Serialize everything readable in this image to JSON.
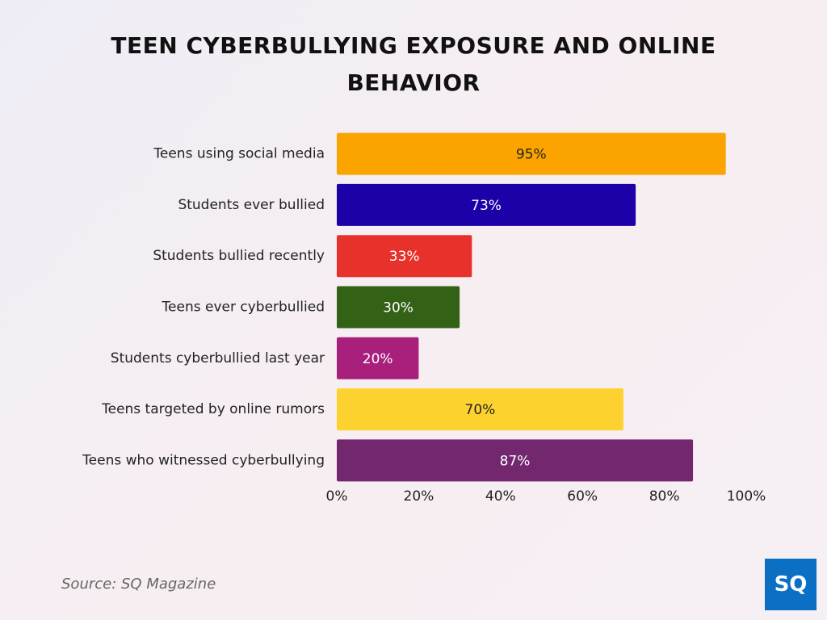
{
  "chart_data": {
    "type": "bar",
    "orientation": "horizontal",
    "title": "TEEN CYBERBULLYING EXPOSURE AND ONLINE BEHAVIOR",
    "categories": [
      "Teens using social media",
      "Students ever bullied",
      "Students bullied recently",
      "Teens ever cyberbullied",
      "Students cyberbullied last year",
      "Teens targeted by online rumors",
      "Teens who witnessed cyberbullying"
    ],
    "values": [
      95,
      73,
      33,
      30,
      20,
      70,
      87
    ],
    "value_labels": [
      "95%",
      "73%",
      "33%",
      "30%",
      "20%",
      "70%",
      "87%"
    ],
    "colors": [
      "#fba400",
      "#1c00a8",
      "#e8312a",
      "#336115",
      "#a81f7c",
      "#fdd22f",
      "#72276f"
    ],
    "xlim": [
      0,
      100
    ],
    "xticks": [
      {
        "value": 0,
        "label": "0%"
      },
      {
        "value": 20,
        "label": "20%"
      },
      {
        "value": 40,
        "label": "40%"
      },
      {
        "value": 60,
        "label": "60%"
      },
      {
        "value": 80,
        "label": "80%"
      },
      {
        "value": 100,
        "label": "100%"
      }
    ],
    "grid": false,
    "source": "Source: SQ Magazine"
  },
  "logo": "SQ"
}
